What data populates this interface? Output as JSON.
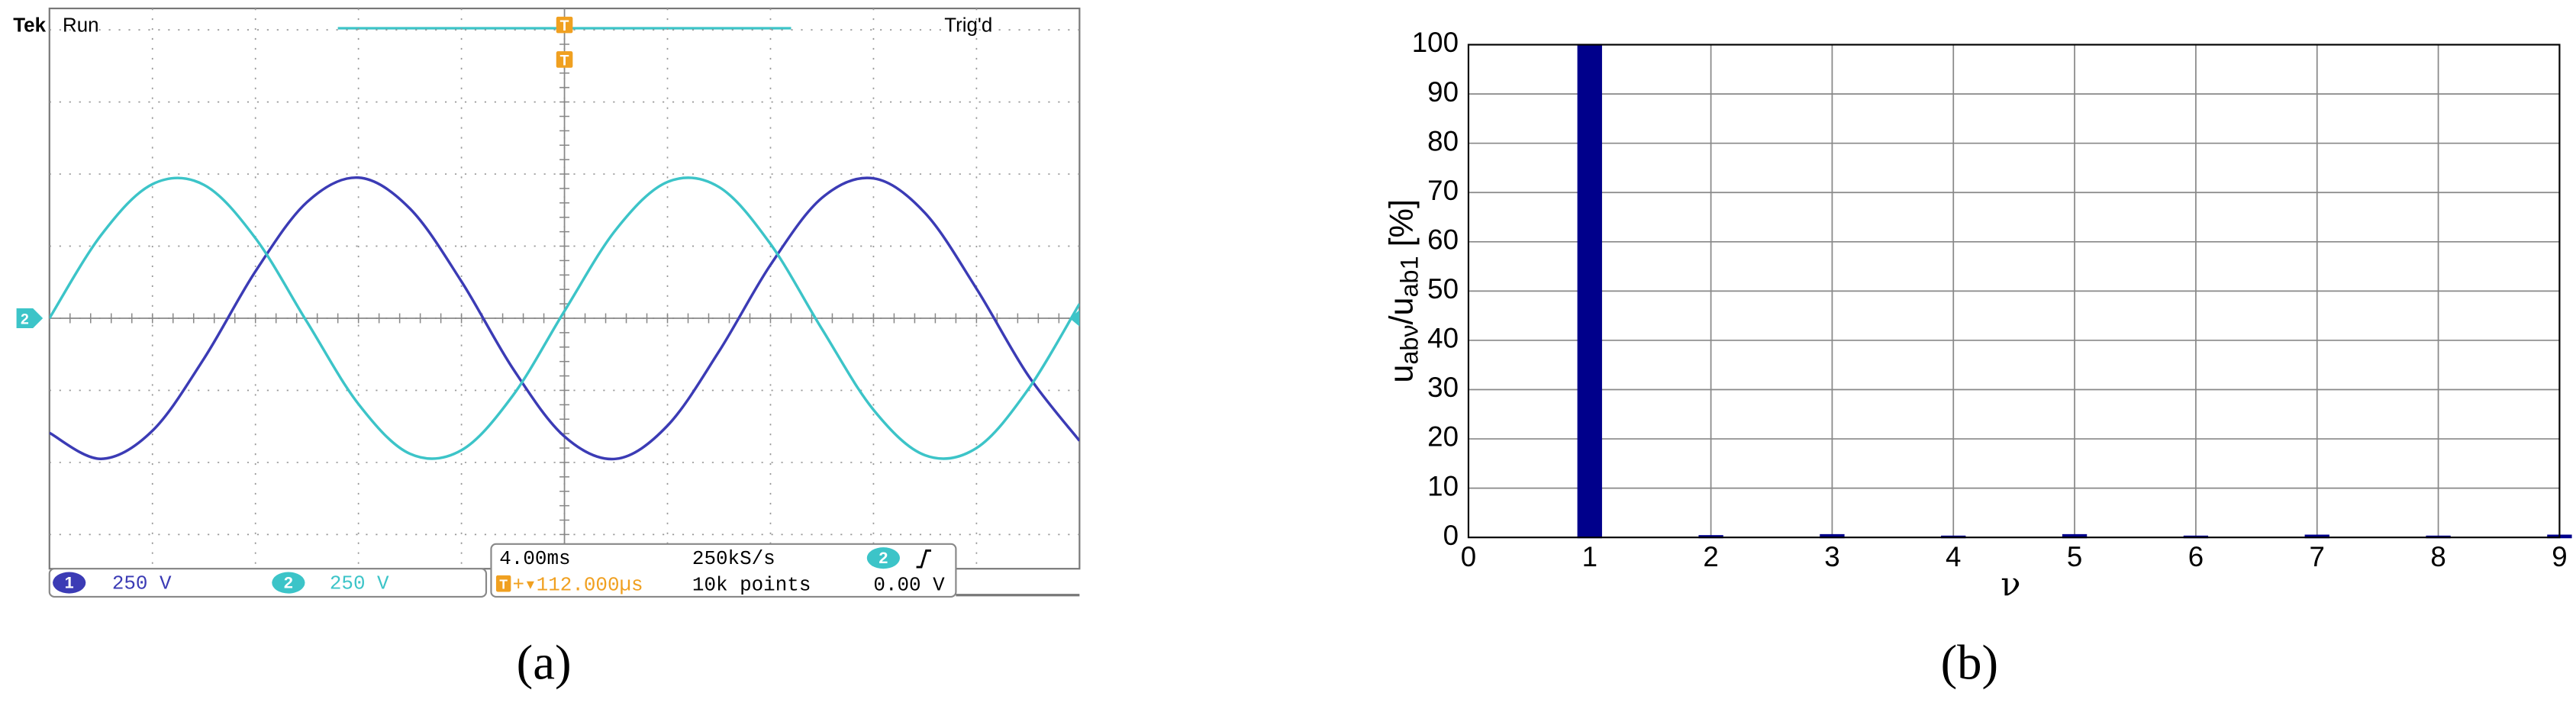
{
  "chart_data": [
    {
      "type": "line",
      "caption": "(a)",
      "header": {
        "brand": "Tek",
        "state": "Run",
        "trigger_status": "Trig'd"
      },
      "trigger_marker": "T",
      "xlim": [
        0,
        10
      ],
      "ylim": [
        -4,
        4
      ],
      "x": [
        0,
        0.5,
        1,
        1.5,
        2,
        2.5,
        3,
        3.5,
        4,
        4.5,
        5,
        5.5,
        6,
        6.5,
        7,
        7.5,
        8,
        8.5,
        9,
        9.5,
        10
      ],
      "series": [
        {
          "name": "1",
          "color": "#3b3bb5",
          "scale": "250 V",
          "values": [
            -1.59,
            -1.95,
            -1.56,
            -0.56,
            0.65,
            1.61,
            1.95,
            1.52,
            0.51,
            -0.7,
            -1.64,
            -1.95,
            -1.49,
            -0.46,
            0.74,
            1.67,
            1.94,
            1.46,
            0.41,
            -0.79,
            -1.7
          ]
        },
        {
          "name": "2",
          "color": "#3cc4c8",
          "scale": "250 V",
          "values": [
            0,
            1.15,
            1.86,
            1.85,
            1.11,
            -0.05,
            -1.19,
            -1.88,
            -1.83,
            -1.07,
            0.1,
            1.23,
            1.89,
            1.82,
            1.03,
            -0.15,
            -1.27,
            -1.9,
            -1.8,
            -0.99,
            0.2
          ]
        }
      ],
      "horizontal": {
        "time_per_div": "4.00ms",
        "sample_rate": "250kS/s",
        "record_length": "10k points",
        "trigger_offset": "+▾112.000µs",
        "trigger_source": "2",
        "trigger_level": "0.00 V"
      }
    },
    {
      "type": "bar",
      "caption": "(b)",
      "x": [
        1,
        2,
        3,
        4,
        5,
        6,
        7,
        8,
        9
      ],
      "values": [
        100,
        0.3,
        0.5,
        0.2,
        0.5,
        0.2,
        0.4,
        0.2,
        0.4
      ],
      "color": "#00008b",
      "xlim": [
        0,
        9
      ],
      "xticks": [
        0,
        1,
        2,
        3,
        4,
        5,
        6,
        7,
        8,
        9
      ],
      "ylim": [
        0,
        100
      ],
      "yticks": [
        0,
        10,
        20,
        30,
        40,
        50,
        60,
        70,
        80,
        90,
        100
      ],
      "grid": true,
      "xlabel": "ν",
      "ylabel": {
        "parts": [
          "u",
          "abν",
          "/u",
          "ab1",
          " [%]"
        ]
      }
    }
  ]
}
